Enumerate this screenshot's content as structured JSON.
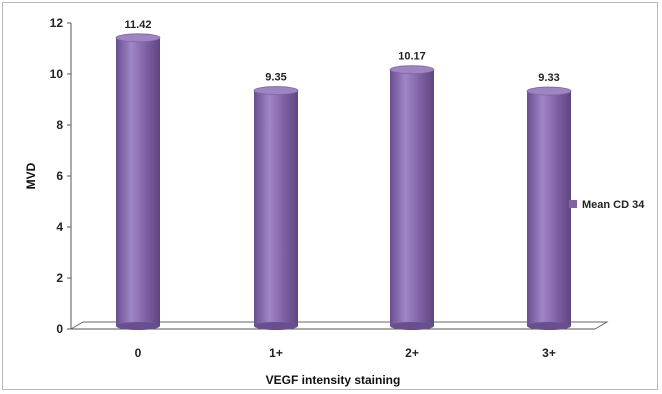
{
  "chart_data": {
    "type": "bar",
    "categories": [
      "0",
      "1+",
      "2+",
      "3+"
    ],
    "series": [
      {
        "name": "Mean CD 34",
        "values": [
          11.42,
          9.35,
          10.17,
          9.33
        ],
        "color": "#8064a2"
      }
    ],
    "data_labels": [
      "11.42",
      "9.35",
      "10.17",
      "9.33"
    ],
    "xlabel": "VEGF intensity staining",
    "ylabel": "MVD",
    "ylim": [
      0,
      12
    ],
    "yticks": [
      0,
      2,
      4,
      6,
      8,
      10,
      12
    ],
    "grid": false,
    "legend": "right"
  }
}
